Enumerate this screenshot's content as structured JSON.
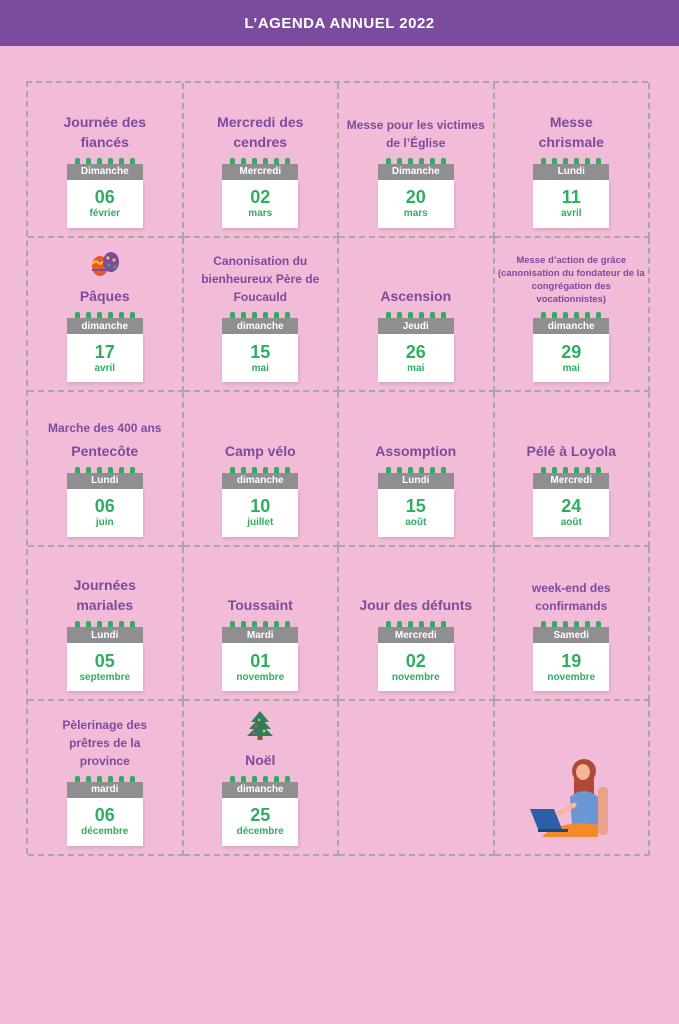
{
  "header": {
    "title": "L’AGENDA ANNUEL 2022"
  },
  "colors": {
    "header_bg": "#7b4b9e",
    "background": "#f2bcd8",
    "title": "#7b4b9e",
    "date": "#2fae5f",
    "calendar_top": "#8f8f8f"
  },
  "events": [
    {
      "title": "Journée des fiancés",
      "weekday": "Dimanche",
      "day": "06",
      "month": "février"
    },
    {
      "title": "Mercredi des cendres",
      "weekday": "Mercredi",
      "day": "02",
      "month": "mars"
    },
    {
      "title": "Messe pour les victimes de l’Église",
      "weekday": "Dimanche",
      "day": "20",
      "month": "mars"
    },
    {
      "title": "Messe chrismale",
      "weekday": "Lundi",
      "day": "11",
      "month": "avril"
    },
    {
      "title": "Pâques",
      "weekday": "dimanche",
      "day": "17",
      "month": "avril",
      "icon": "easter-eggs-icon"
    },
    {
      "title": "Canonisation du bienheureux Père de Foucauld",
      "weekday": "dimanche",
      "day": "15",
      "month": "mai"
    },
    {
      "title": "Ascension",
      "weekday": "Jeudi",
      "day": "26",
      "month": "mai"
    },
    {
      "title": "Messe d’action de grâce (canonisation du fondateur de la congrégation des vocationnistes)",
      "weekday": "dimanche",
      "day": "29",
      "month": "mai"
    },
    {
      "pre": "Marche des 400 ans",
      "title": "Pentecôte",
      "weekday": "Lundi",
      "day": "06",
      "month": "juin"
    },
    {
      "title": "Camp vélo",
      "weekday": "dimanche",
      "day": "10",
      "month": "juillet"
    },
    {
      "title": "Assomption",
      "weekday": "Lundi",
      "day": "15",
      "month": "août"
    },
    {
      "title": "Pélé à Loyola",
      "weekday": "Mercredi",
      "day": "24",
      "month": "août"
    },
    {
      "title": "Journées mariales",
      "weekday": "Lundi",
      "day": "05",
      "month": "septembre"
    },
    {
      "title": "Toussaint",
      "weekday": "Mardi",
      "day": "01",
      "month": "novembre"
    },
    {
      "title": "Jour des défunts",
      "weekday": "Mercredi",
      "day": "02",
      "month": "novembre"
    },
    {
      "title": "week-end des confirmands",
      "weekday": "Samedi",
      "day": "19",
      "month": "novembre"
    },
    {
      "title": "Pèlerinage des prêtres de la province",
      "weekday": "mardi",
      "day": "06",
      "month": "décembre"
    },
    {
      "title": "Noël",
      "weekday": "dimanche",
      "day": "25",
      "month": "décembre",
      "icon": "christmas-tree-icon"
    }
  ],
  "illustration": "woman-with-laptop-icon"
}
